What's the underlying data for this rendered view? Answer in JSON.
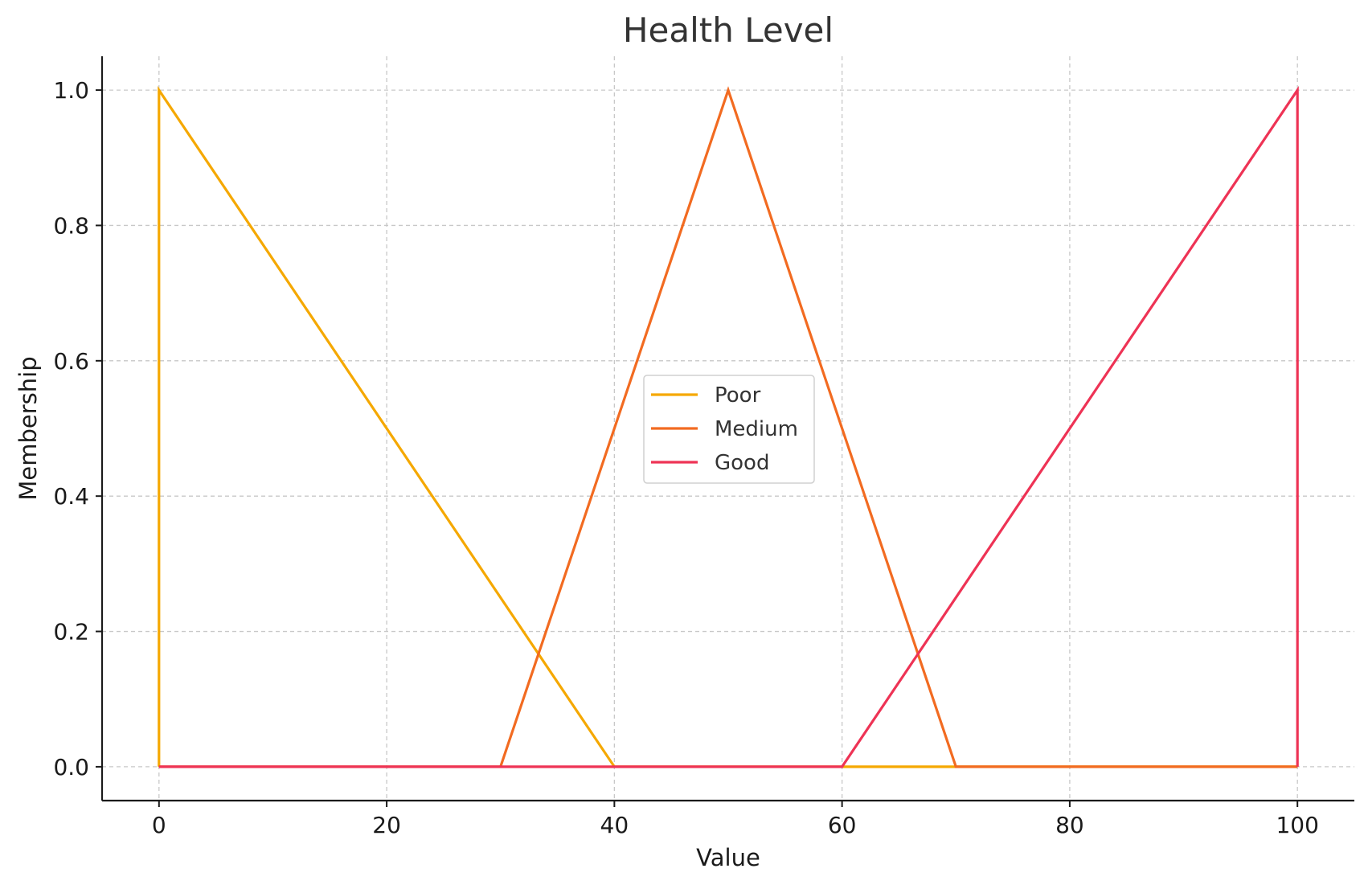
{
  "chart_data": {
    "type": "line",
    "title": "Health Level",
    "xlabel": "Value",
    "ylabel": "Membership",
    "xlim": [
      -5,
      105
    ],
    "ylim": [
      -0.05,
      1.05
    ],
    "xticks": [
      0,
      20,
      40,
      60,
      80,
      100
    ],
    "yticks": [
      0.0,
      0.2,
      0.4,
      0.6,
      0.8,
      1.0
    ],
    "xtick_labels": [
      "0",
      "20",
      "40",
      "60",
      "80",
      "100"
    ],
    "ytick_labels": [
      "0.0",
      "0.2",
      "0.4",
      "0.6",
      "0.8",
      "1.0"
    ],
    "grid": true,
    "legend_position": "center",
    "series": [
      {
        "name": "Poor",
        "color": "#F5A800",
        "x": [
          0,
          0,
          40,
          100
        ],
        "y": [
          0,
          1,
          0,
          0
        ]
      },
      {
        "name": "Medium",
        "color": "#F26B21",
        "x": [
          0,
          30,
          50,
          70,
          100
        ],
        "y": [
          0,
          0,
          1,
          0,
          0
        ]
      },
      {
        "name": "Good",
        "color": "#EE3355",
        "x": [
          0,
          60,
          100,
          100
        ],
        "y": [
          0,
          0,
          1,
          0
        ]
      }
    ]
  }
}
